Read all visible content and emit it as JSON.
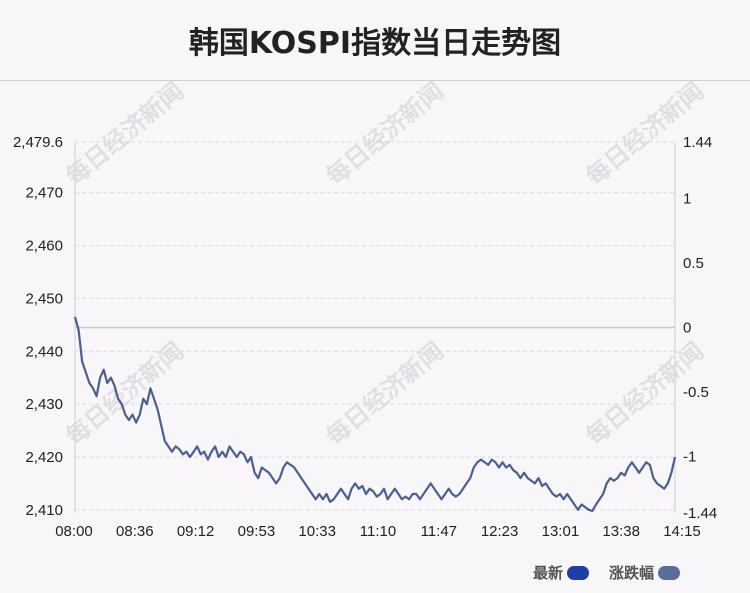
{
  "title": "韩国KOSPI指数当日走势图",
  "watermark": "每日经济新闻",
  "legend": [
    {
      "label": "最新",
      "color": "#1f3fa8"
    },
    {
      "label": "涨跌幅",
      "color": "#5a6e9a"
    }
  ],
  "chart_data": {
    "type": "line",
    "x_ticks": [
      "08:00",
      "08:36",
      "09:12",
      "09:53",
      "10:33",
      "11:10",
      "11:47",
      "12:23",
      "13:01",
      "13:38",
      "14:15"
    ],
    "y_left": {
      "ticks": [
        "2,479.6",
        "2,470",
        "2,460",
        "2,450",
        "2,440",
        "2,430",
        "2,420",
        "2,410"
      ],
      "range": [
        2409.4,
        2479.6
      ]
    },
    "y_right": {
      "ticks": [
        "1.44",
        "1",
        "0.5",
        "0",
        "-0.5",
        "-1",
        "-1.44"
      ],
      "range": [
        -1.44,
        1.44
      ]
    },
    "series": [
      {
        "values": [
          2446.5,
          2444,
          2438,
          2436,
          2434,
          2433,
          2431.5,
          2435,
          2436.5,
          2434,
          2435,
          2433.5,
          2431,
          2430,
          2428,
          2427,
          2428,
          2426.5,
          2428,
          2431,
          2430,
          2433,
          2431,
          2429,
          2426,
          2423,
          2422,
          2421,
          2422,
          2421.5,
          2420.5,
          2421,
          2420,
          2421,
          2422,
          2420.5,
          2421,
          2419.5,
          2421,
          2422,
          2420,
          2421,
          2420,
          2422,
          2421,
          2420,
          2421,
          2420.5,
          2419,
          2420,
          2417,
          2416,
          2418,
          2417.5,
          2417,
          2416,
          2415,
          2416,
          2418,
          2419,
          2418.5,
          2418,
          2417,
          2416,
          2415,
          2414,
          2413,
          2412,
          2413,
          2412,
          2413,
          2411.5,
          2412,
          2413,
          2414,
          2413,
          2412,
          2414,
          2415,
          2414,
          2414.5,
          2413,
          2414,
          2413.5,
          2412.5,
          2413,
          2414,
          2412,
          2413,
          2414,
          2413,
          2412,
          2412.5,
          2412,
          2413,
          2413,
          2412,
          2413,
          2414,
          2415,
          2414,
          2413,
          2412,
          2413,
          2414,
          2413,
          2412.5,
          2413,
          2414,
          2415,
          2416,
          2418,
          2419,
          2419.5,
          2419,
          2418.5,
          2419.5,
          2419,
          2418,
          2419,
          2418,
          2418.5,
          2417.5,
          2417,
          2416,
          2417,
          2416,
          2415.5,
          2415,
          2416,
          2414.5,
          2415,
          2414,
          2413,
          2412.5,
          2413,
          2412,
          2413,
          2412,
          2411,
          2410,
          2411,
          2410.5,
          2410,
          2409.8,
          2411,
          2412,
          2413,
          2415,
          2416,
          2415.5,
          2416,
          2417,
          2416.5,
          2418,
          2419,
          2418,
          2417,
          2418,
          2419,
          2418.5,
          2416,
          2415,
          2414.5,
          2414,
          2415,
          2417,
          2420
        ]
      }
    ]
  }
}
